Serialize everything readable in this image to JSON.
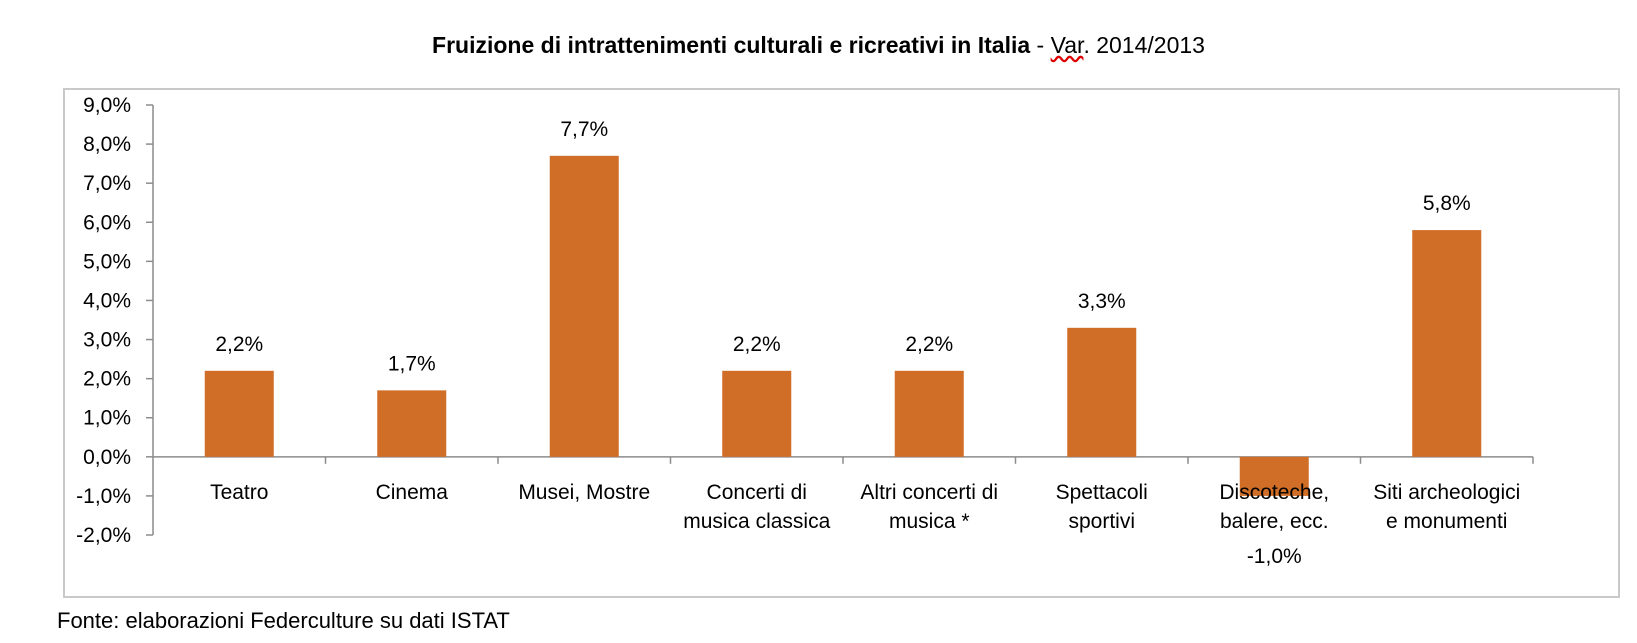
{
  "title": {
    "main": "Fruizione di intrattenimenti culturali e ricreativi in Italia",
    "separator": " - ",
    "var_word": "Var",
    "rest": ". 2014/2013"
  },
  "source": "Fonte: elaborazioni Federculture su dati ISTAT",
  "chart_data": {
    "type": "bar",
    "categories": [
      [
        "Teatro"
      ],
      [
        "Cinema"
      ],
      [
        "Musei, Mostre"
      ],
      [
        "Concerti di",
        "musica classica"
      ],
      [
        "Altri concerti di",
        "musica *"
      ],
      [
        "Spettacoli",
        "sportivi"
      ],
      [
        "Discoteche,",
        "balere, ecc."
      ],
      [
        "Siti archeologici",
        "e monumenti"
      ]
    ],
    "values": [
      2.2,
      1.7,
      7.7,
      2.2,
      2.2,
      3.3,
      -1.0,
      5.8
    ],
    "data_labels": [
      "2,2%",
      "1,7%",
      "7,7%",
      "2,2%",
      "2,2%",
      "3,3%",
      "-1,0%",
      "5,8%"
    ],
    "yticks": [
      9.0,
      8.0,
      7.0,
      6.0,
      5.0,
      4.0,
      3.0,
      2.0,
      1.0,
      0.0,
      -1.0,
      -2.0
    ],
    "ytick_labels": [
      "9,0%",
      "8,0%",
      "7,0%",
      "6,0%",
      "5,0%",
      "4,0%",
      "3,0%",
      "2,0%",
      "1,0%",
      "0,0%",
      "-1,0%",
      "-2,0%"
    ],
    "ylim": [
      -2.0,
      9.0
    ],
    "grid": false,
    "legend": "none",
    "bar_color": "#d06d26"
  }
}
